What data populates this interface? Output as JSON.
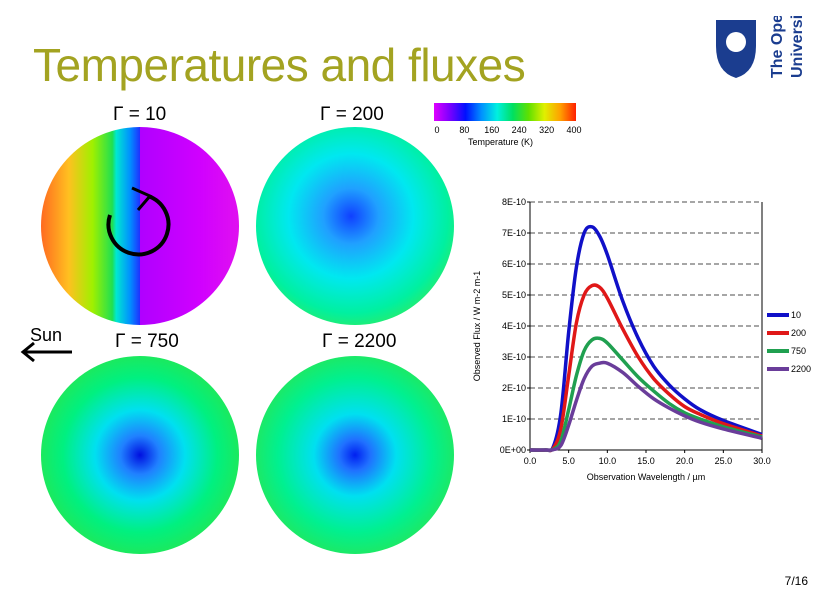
{
  "slide": {
    "title": "Temperatures and fluxes",
    "page_number": "7/16",
    "sun_label": "Sun",
    "logo": {
      "text_lines": [
        "The Open",
        "University"
      ],
      "color": "#1b3d8f"
    }
  },
  "globes": [
    {
      "label": "Γ = 10"
    },
    {
      "label": "Γ = 200"
    },
    {
      "label": "Γ = 750"
    },
    {
      "label": "Γ = 2200"
    }
  ],
  "colorbar": {
    "ticks": [
      "0",
      "80",
      "160",
      "240",
      "320",
      "400"
    ],
    "label": "Temperature (K)",
    "colors": [
      "#e000ff",
      "#7a00ff",
      "#0010ff",
      "#0090ff",
      "#00f0e0",
      "#00e060",
      "#60e000",
      "#e0f000",
      "#ffa000",
      "#ff2000"
    ]
  },
  "chart_data": {
    "type": "line",
    "xlabel": "Observation Wavelength / µm",
    "ylabel": "Observed Flux / W m-2 m-1",
    "xlim": [
      0,
      30
    ],
    "ylim": [
      0,
      8e-10
    ],
    "x_ticks": [
      "0.0",
      "5.0",
      "10.0",
      "15.0",
      "20.0",
      "25.0",
      "30.0"
    ],
    "y_ticks": [
      "0E+00",
      "1E-10",
      "2E-10",
      "3E-10",
      "4E-10",
      "5E-10",
      "6E-10",
      "7E-10",
      "8E-10"
    ],
    "grid": "horizontal dashed",
    "legend_placement": "right",
    "x": [
      0,
      2,
      3,
      4,
      5,
      6,
      7,
      8,
      9,
      10,
      12,
      14,
      16,
      18,
      20,
      22,
      25,
      30
    ],
    "series": [
      {
        "name": "10",
        "color": "#1010c8",
        "values": [
          0,
          0,
          1e-11,
          1.2e-10,
          3.8e-10,
          5.9e-10,
          7e-10,
          7.2e-10,
          6.9e-10,
          6.3e-10,
          4.8e-10,
          3.6e-10,
          2.7e-10,
          2.1e-10,
          1.65e-10,
          1.3e-10,
          9.5e-11,
          5e-11
        ]
      },
      {
        "name": "200",
        "color": "#e01818",
        "values": [
          0,
          0,
          5e-12,
          7e-11,
          2.4e-10,
          4.1e-10,
          5e-10,
          5.3e-10,
          5.25e-10,
          4.9e-10,
          3.9e-10,
          3e-10,
          2.3e-10,
          1.8e-10,
          1.4e-10,
          1.15e-10,
          8.5e-11,
          4.5e-11
        ]
      },
      {
        "name": "750",
        "color": "#20a050",
        "values": [
          0,
          0,
          2e-12,
          3e-11,
          1.3e-10,
          2.4e-10,
          3.2e-10,
          3.55e-10,
          3.6e-10,
          3.45e-10,
          2.9e-10,
          2.35e-10,
          1.9e-10,
          1.5e-10,
          1.2e-10,
          1e-10,
          7.5e-11,
          4.2e-11
        ]
      },
      {
        "name": "2200",
        "color": "#6a3d9a",
        "values": [
          0,
          0,
          1e-12,
          1.5e-11,
          8e-11,
          1.6e-10,
          2.3e-10,
          2.7e-10,
          2.8e-10,
          2.8e-10,
          2.5e-10,
          2.05e-10,
          1.65e-10,
          1.35e-10,
          1.1e-10,
          9e-11,
          6.8e-11,
          3.8e-11
        ]
      }
    ]
  }
}
